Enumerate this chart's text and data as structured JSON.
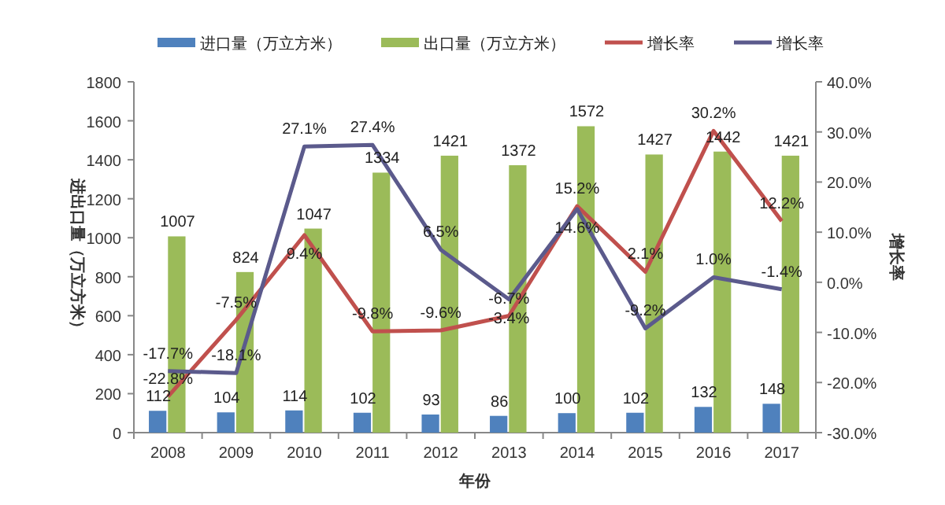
{
  "chart_data": {
    "type": "bar",
    "xlabel": "年份",
    "ylabel": "进出口量（万立方米）",
    "y2label": "增长率",
    "categories": [
      "2008",
      "2009",
      "2010",
      "2011",
      "2012",
      "2013",
      "2014",
      "2015",
      "2016",
      "2017"
    ],
    "series": [
      {
        "name": "进口量（万立方米）",
        "color": "#4f81bd",
        "values": [
          112,
          104,
          114,
          102,
          93,
          86,
          100,
          102,
          132,
          148
        ]
      },
      {
        "name": "出口量（万立方米）",
        "color": "#9bbb59",
        "values": [
          1007,
          824,
          1047,
          1334,
          1421,
          1372,
          1572,
          1427,
          1442,
          1421
        ]
      },
      {
        "name": "增长率",
        "type": "line",
        "axis": "y2",
        "color": "#c0504d",
        "values": [
          -22.8,
          -7.5,
          9.4,
          -9.8,
          -9.6,
          -6.7,
          15.2,
          2.1,
          30.2,
          12.2
        ],
        "value_labels": [
          "-22.8%",
          "-7.5%",
          "9.4%",
          "-9.8%",
          "-9.6%",
          "-6.7%",
          "15.2%",
          "2.1%",
          "30.2%",
          "12.2%"
        ]
      },
      {
        "name": "增长率",
        "type": "line",
        "axis": "y2",
        "color": "#5b5a8c",
        "values": [
          -17.7,
          -18.1,
          27.1,
          27.4,
          6.5,
          -3.4,
          14.6,
          -9.2,
          1.0,
          -1.4
        ],
        "value_labels": [
          "-17.7%",
          "-18.1%",
          "27.1%",
          "27.4%",
          "6.5%",
          "-3.4%",
          "14.6%",
          "-9.2%",
          "1.0%",
          "-1.4%"
        ]
      }
    ],
    "ylim": [
      0,
      1800
    ],
    "yticks": [
      0,
      200,
      400,
      600,
      800,
      1000,
      1200,
      1400,
      1600,
      1800
    ],
    "y2lim": [
      -30,
      40
    ],
    "y2ticks": [
      {
        "value": -30,
        "label": "-30.0%"
      },
      {
        "value": -20,
        "label": "-20.0%"
      },
      {
        "value": -10,
        "label": "-10.0%"
      },
      {
        "value": 0,
        "label": "0.0%"
      },
      {
        "value": 10,
        "label": "10.0%"
      },
      {
        "value": 20,
        "label": "20.0%"
      },
      {
        "value": 30,
        "label": "30.0%"
      },
      {
        "value": 40,
        "label": "40.0%"
      }
    ],
    "data_labels": true,
    "legend": "top",
    "grid": false
  }
}
